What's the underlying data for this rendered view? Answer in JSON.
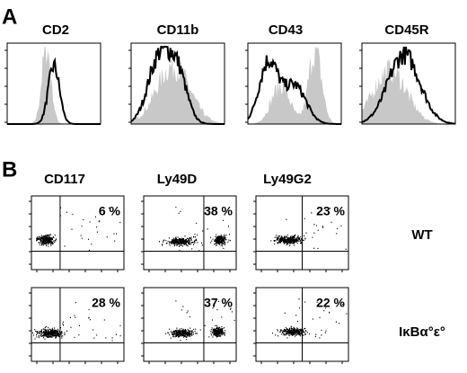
{
  "panel_a": {
    "label": "A",
    "histograms": [
      "CD2",
      "CD11b",
      "CD43",
      "CD45R"
    ]
  },
  "panel_b": {
    "label": "B",
    "columns": [
      "CD117",
      "Ly49D",
      "Ly49G2"
    ],
    "rows": [
      "WT",
      "IκBα°ε°"
    ],
    "percentages": [
      [
        "6 %",
        "38 %",
        "23 %"
      ],
      [
        "28 %",
        "37 %",
        "22 %"
      ]
    ]
  }
}
